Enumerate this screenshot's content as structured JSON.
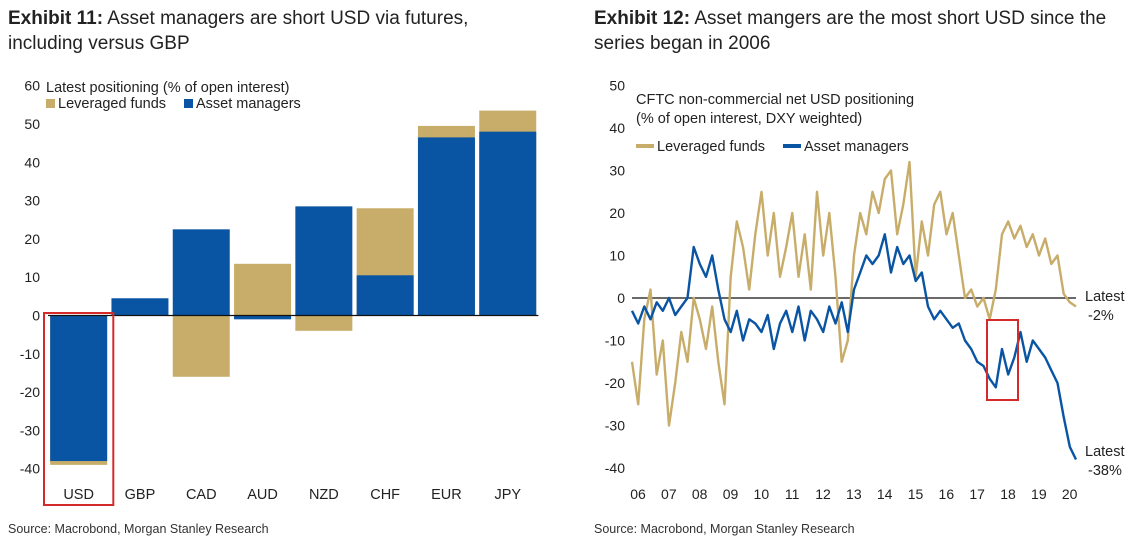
{
  "exhibit11": {
    "label": "Exhibit 11:",
    "title_line1": "Asset managers are short USD via futures,",
    "title_line2": "including versus GBP",
    "source": "Source: Macrobond, Morgan Stanley Research"
  },
  "exhibit12": {
    "label": "Exhibit 12:",
    "title_line1": "Asset mangers are the most short USD since the",
    "title_line2": "series began in 2006",
    "source": "Source: Macrobond, Morgan Stanley Research"
  },
  "colors": {
    "leveraged": "#c8ad6a",
    "asset": "#0a55a3",
    "highlight": "#d42a2a",
    "axis": "#111111"
  },
  "chart_data": [
    {
      "type": "bar",
      "subtitle": "Latest positioning (% of open interest)",
      "categories": [
        "USD",
        "GBP",
        "CAD",
        "AUD",
        "NZD",
        "CHF",
        "EUR",
        "JPY"
      ],
      "series": [
        {
          "name": "Leveraged funds",
          "values": [
            -39,
            0,
            -16,
            13.5,
            -4,
            28,
            49.5,
            53.5
          ]
        },
        {
          "name": "Asset managers",
          "values": [
            -38,
            4.5,
            22.5,
            -1,
            28.5,
            10.5,
            46.5,
            48
          ]
        }
      ],
      "ylim": [
        -40,
        60
      ],
      "yticks": [
        "60",
        "50",
        "40",
        "30",
        "20",
        "10",
        "0",
        "-10",
        "-20",
        "-30",
        "-40"
      ],
      "highlighted_category": "USD"
    },
    {
      "type": "line",
      "subtitle_line1": "CFTC non-commercial net USD positioning",
      "subtitle_line2": "(% of open interest, DXY weighted)",
      "ylim": [
        -40,
        50
      ],
      "xlim": [
        2006,
        2020.4
      ],
      "yticks": [
        "50",
        "40",
        "30",
        "20",
        "10",
        "0",
        "-10",
        "-20",
        "-30",
        "-40"
      ],
      "xticks": [
        "06",
        "07",
        "08",
        "09",
        "10",
        "11",
        "12",
        "13",
        "14",
        "15",
        "16",
        "17",
        "18",
        "19",
        "20"
      ],
      "series": [
        {
          "name": "Leveraged funds",
          "x": [
            2006.0,
            2006.2,
            2006.4,
            2006.6,
            2006.8,
            2007.0,
            2007.2,
            2007.4,
            2007.6,
            2007.8,
            2008.0,
            2008.2,
            2008.4,
            2008.6,
            2008.8,
            2009.0,
            2009.2,
            2009.4,
            2009.6,
            2009.8,
            2010.0,
            2010.2,
            2010.4,
            2010.6,
            2010.8,
            2011.0,
            2011.2,
            2011.4,
            2011.6,
            2011.8,
            2012.0,
            2012.2,
            2012.4,
            2012.6,
            2012.8,
            2013.0,
            2013.2,
            2013.4,
            2013.6,
            2013.8,
            2014.0,
            2014.2,
            2014.4,
            2014.6,
            2014.8,
            2015.0,
            2015.2,
            2015.4,
            2015.6,
            2015.8,
            2016.0,
            2016.2,
            2016.4,
            2016.6,
            2016.8,
            2017.0,
            2017.2,
            2017.4,
            2017.6,
            2017.8,
            2018.0,
            2018.2,
            2018.4,
            2018.6,
            2018.8,
            2019.0,
            2019.2,
            2019.4,
            2019.6,
            2019.8,
            2020.0,
            2020.2,
            2020.4
          ],
          "values": [
            -15,
            -25,
            -5,
            2,
            -18,
            -10,
            -30,
            -20,
            -8,
            -15,
            0,
            -5,
            -12,
            -2,
            -15,
            -25,
            5,
            18,
            12,
            2,
            15,
            25,
            10,
            20,
            5,
            12,
            20,
            5,
            15,
            2,
            25,
            10,
            20,
            5,
            -15,
            -10,
            10,
            20,
            15,
            25,
            20,
            28,
            30,
            15,
            22,
            32,
            5,
            18,
            10,
            22,
            25,
            15,
            20,
            10,
            0,
            2,
            -2,
            0,
            -5,
            2,
            15,
            18,
            14,
            17,
            12,
            15,
            10,
            14,
            8,
            10,
            1,
            -1,
            -2
          ]
        },
        {
          "name": "Asset managers",
          "x": [
            2006.0,
            2006.2,
            2006.4,
            2006.6,
            2006.8,
            2007.0,
            2007.2,
            2007.4,
            2007.6,
            2007.8,
            2008.0,
            2008.2,
            2008.4,
            2008.6,
            2008.8,
            2009.0,
            2009.2,
            2009.4,
            2009.6,
            2009.8,
            2010.0,
            2010.2,
            2010.4,
            2010.6,
            2010.8,
            2011.0,
            2011.2,
            2011.4,
            2011.6,
            2011.8,
            2012.0,
            2012.2,
            2012.4,
            2012.6,
            2012.8,
            2013.0,
            2013.2,
            2013.4,
            2013.6,
            2013.8,
            2014.0,
            2014.2,
            2014.4,
            2014.6,
            2014.8,
            2015.0,
            2015.2,
            2015.4,
            2015.6,
            2015.8,
            2016.0,
            2016.2,
            2016.4,
            2016.6,
            2016.8,
            2017.0,
            2017.2,
            2017.4,
            2017.6,
            2017.8,
            2018.0,
            2018.2,
            2018.4,
            2018.6,
            2018.8,
            2019.0,
            2019.2,
            2019.4,
            2019.6,
            2019.8,
            2020.0,
            2020.2,
            2020.4
          ],
          "values": [
            -3,
            -6,
            -2,
            -5,
            -1,
            -3,
            0,
            -4,
            -2,
            0,
            12,
            8,
            5,
            10,
            2,
            -5,
            -8,
            -3,
            -10,
            -5,
            -6,
            -8,
            -4,
            -12,
            -6,
            -3,
            -8,
            -2,
            -10,
            -3,
            -5,
            -8,
            -2,
            -6,
            -1,
            -8,
            2,
            6,
            10,
            8,
            10,
            15,
            6,
            12,
            8,
            10,
            4,
            6,
            -2,
            -5,
            -3,
            -5,
            -7,
            -6,
            -10,
            -12,
            -15,
            -16,
            -19,
            -21,
            -12,
            -18,
            -14,
            -8,
            -15,
            -10,
            -12,
            -14,
            -17,
            -20,
            -28,
            -35,
            -38
          ]
        }
      ],
      "annotations": [
        {
          "line1": "Latest",
          "line2": "-2%"
        },
        {
          "line1": "Latest",
          "line2": "-38%"
        }
      ]
    }
  ]
}
